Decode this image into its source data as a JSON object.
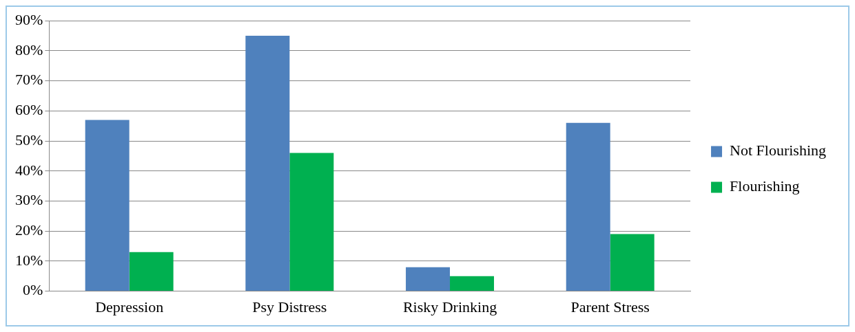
{
  "chart_data": {
    "type": "bar",
    "categories": [
      "Depression",
      "Psy Distress",
      "Risky Drinking",
      "Parent Stress"
    ],
    "series": [
      {
        "name": "Not Flourishing",
        "color": "#4f81bd",
        "values": [
          57,
          85,
          8,
          56
        ]
      },
      {
        "name": "Flourishing",
        "color": "#00b050",
        "values": [
          13,
          46,
          5,
          19
        ]
      }
    ],
    "ylim": [
      0,
      90
    ],
    "yticks": [
      {
        "value": 0,
        "label": "0%"
      },
      {
        "value": 10,
        "label": "10%"
      },
      {
        "value": 20,
        "label": "20%"
      },
      {
        "value": 30,
        "label": "30%"
      },
      {
        "value": 40,
        "label": "40%"
      },
      {
        "value": 50,
        "label": "50%"
      },
      {
        "value": 60,
        "label": "60%"
      },
      {
        "value": 70,
        "label": "70%"
      },
      {
        "value": 80,
        "label": "80%"
      },
      {
        "value": 90,
        "label": "90%"
      }
    ],
    "grid": "y",
    "legend": "right"
  }
}
